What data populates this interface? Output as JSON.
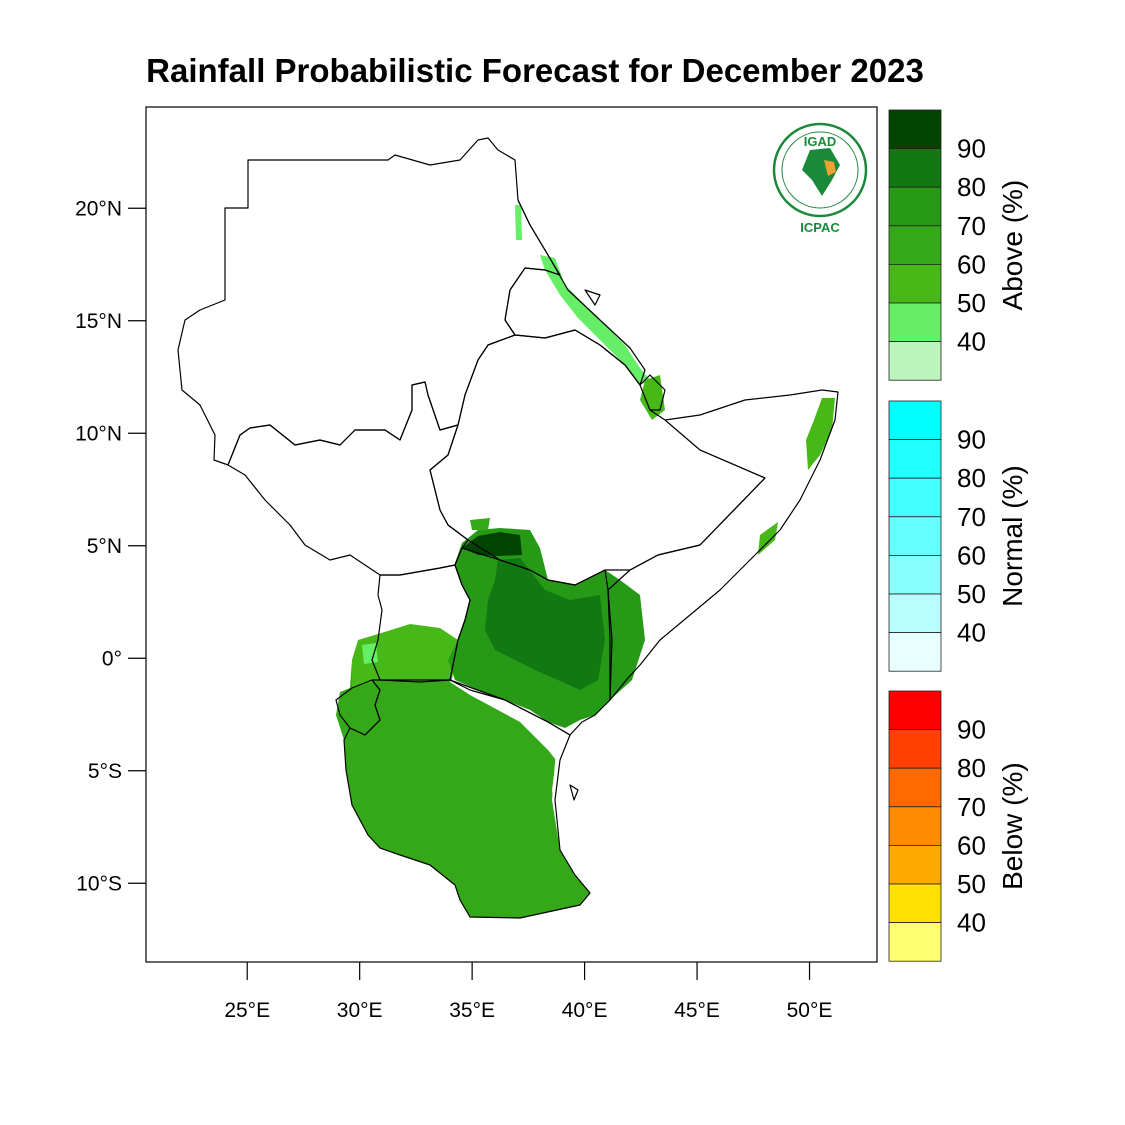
{
  "title": "Rainfall Probabilistic Forecast for December 2023",
  "logo": {
    "top_text": "IGAD",
    "bottom_text": "ICPAC",
    "ring_color": "#1a8a3a",
    "accent_color": "#f0a030"
  },
  "axes": {
    "lat_ticks": [
      "20°N",
      "15°N",
      "10°N",
      "5°N",
      "0°",
      "5°S",
      "10°S"
    ],
    "lon_ticks": [
      "25°E",
      "30°E",
      "35°E",
      "40°E",
      "45°E",
      "50°E"
    ],
    "lat_values": [
      20,
      15,
      10,
      5,
      0,
      -5,
      -10
    ],
    "lon_values": [
      25,
      30,
      35,
      40,
      45,
      50
    ],
    "lon_range": [
      20.5,
      53
    ],
    "lat_range": [
      -13.5,
      24.5
    ]
  },
  "colorbars": [
    {
      "title": "Above (%)",
      "labels": [
        "90",
        "80",
        "70",
        "60",
        "50",
        "40"
      ],
      "colors": [
        "#004400",
        "#127812",
        "#269a16",
        "#34a818",
        "#46b818",
        "#66ee66",
        "#bbf5bb"
      ]
    },
    {
      "title": "Normal (%)",
      "labels": [
        "90",
        "80",
        "70",
        "60",
        "50",
        "40"
      ],
      "colors": [
        "#00ffff",
        "#22ffff",
        "#44ffff",
        "#66ffff",
        "#88ffff",
        "#b8ffff",
        "#e8ffff"
      ]
    },
    {
      "title": "Below (%)",
      "labels": [
        "90",
        "80",
        "70",
        "60",
        "50",
        "40"
      ],
      "colors": [
        "#ff0000",
        "#ff4000",
        "#ff6a00",
        "#ff8c00",
        "#ffaa00",
        "#ffe000",
        "#ffff70"
      ]
    }
  ],
  "colors": {
    "above_50": "#46b818",
    "above_60": "#34a818",
    "above_70": "#269a16",
    "above_80": "#127812",
    "above_90": "#004400",
    "above_40": "#66ee66"
  }
}
